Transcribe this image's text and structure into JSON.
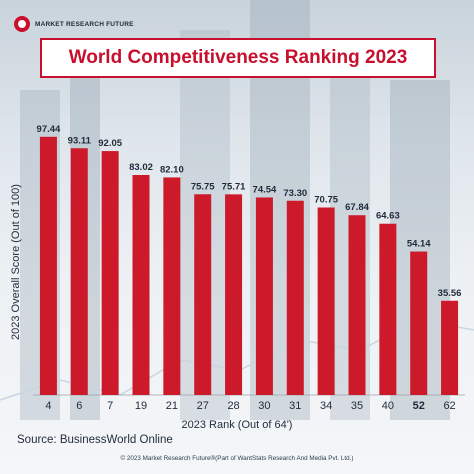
{
  "brand": {
    "name": "MARKET RESEARCH FUTURE"
  },
  "chart_data": {
    "type": "bar",
    "title": "World Competitiveness Ranking 2023",
    "xlabel": "2023 Rank (Out of 64')",
    "ylabel": "2023 Overall Score (Out of 100)",
    "categories": [
      "4",
      "6",
      "7",
      "19",
      "21",
      "27",
      "28",
      "30",
      "31",
      "34",
      "35",
      "40",
      "52",
      "62"
    ],
    "values": [
      97.44,
      93.11,
      92.05,
      83.02,
      82.1,
      75.75,
      75.71,
      74.54,
      73.3,
      70.75,
      67.84,
      64.63,
      54.14,
      35.56
    ],
    "value_labels": [
      "97.44",
      "93.11",
      "92.05",
      "83.02",
      "82.10",
      "75.75",
      "75.71",
      "74.54",
      "73.30",
      "70.75",
      "67.84",
      "64.63",
      "54.14",
      "35.56"
    ],
    "ylim": [
      0,
      100
    ],
    "bar_color": "#cc1a2a",
    "highlight_category": "52",
    "grid": false,
    "legend": "none"
  },
  "source": "Source: BusinessWorld Online",
  "footer": "© 2023 Market Research Future®(Part of WantStats Research And Media Pvt. Ltd.)"
}
